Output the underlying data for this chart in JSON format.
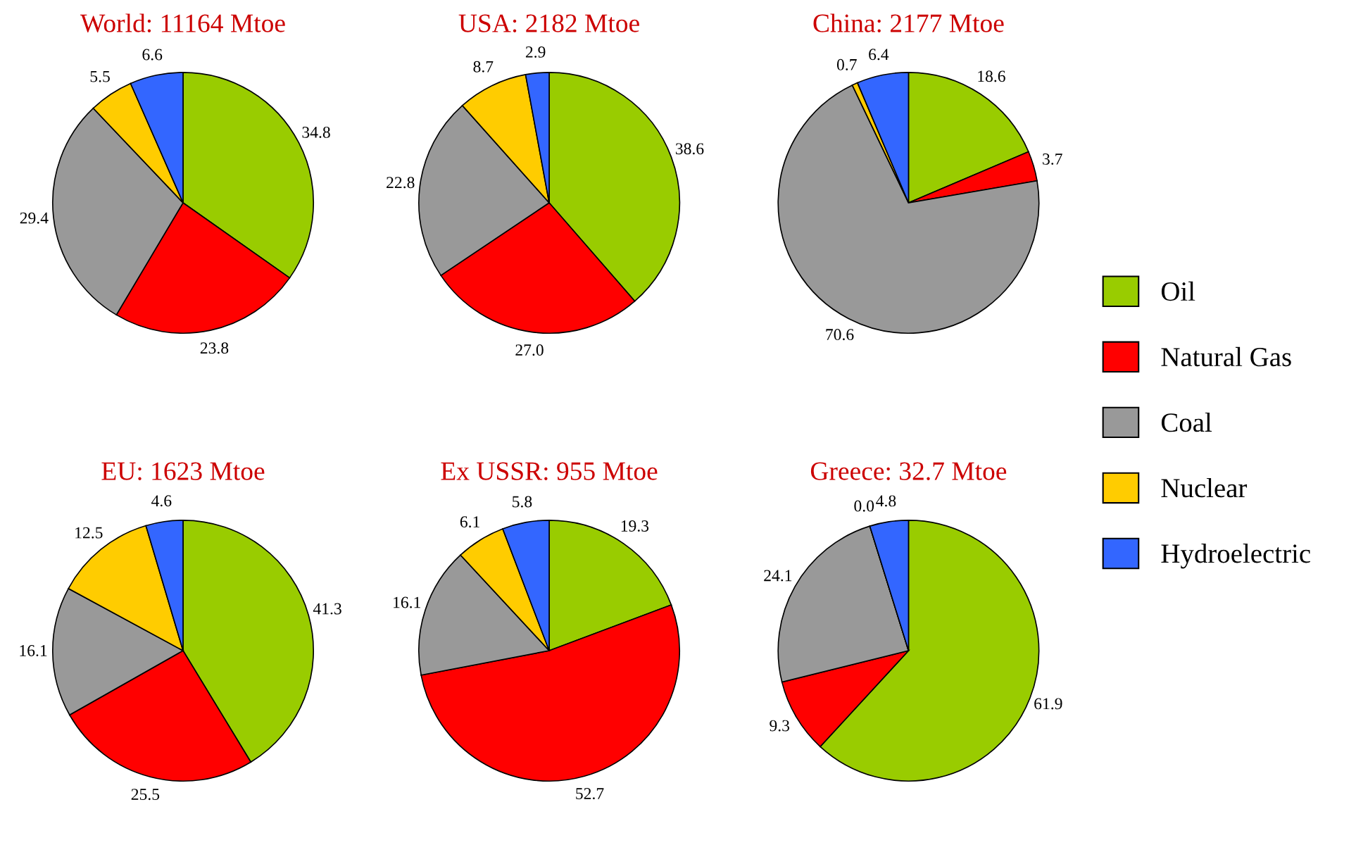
{
  "chart_data": [
    {
      "type": "pie",
      "title": "World: 11164 Mtoe",
      "categories": [
        "Oil",
        "Natural Gas",
        "Coal",
        "Nuclear",
        "Hydroelectric"
      ],
      "values": [
        34.8,
        23.8,
        29.4,
        5.5,
        6.6
      ],
      "value_labels": [
        "34.8",
        "23.8",
        "29.4",
        "5.5",
        "6.6"
      ],
      "colors": [
        "#99cc00",
        "#ff0000",
        "#999999",
        "#ffcc00",
        "#3366ff"
      ],
      "legend": "right"
    },
    {
      "type": "pie",
      "title": "USA: 2182 Mtoe",
      "values": [
        38.6,
        27.0,
        22.8,
        8.7,
        2.9
      ],
      "value_labels": [
        "38.6",
        "27.0",
        "22.8",
        "8.7",
        "2.9"
      ],
      "colors": [
        "#99cc00",
        "#ff0000",
        "#999999",
        "#ffcc00",
        "#3366ff"
      ]
    },
    {
      "type": "pie",
      "title": "China: 2177 Mtoe",
      "values": [
        18.6,
        3.7,
        70.6,
        0.7,
        6.4
      ],
      "value_labels": [
        "18.6",
        "3.7",
        "70.6",
        "0.7",
        "6.4"
      ],
      "colors": [
        "#99cc00",
        "#ff0000",
        "#999999",
        "#ffcc00",
        "#3366ff"
      ]
    },
    {
      "type": "pie",
      "title": "EU: 1623 Mtoe",
      "values": [
        41.3,
        25.5,
        16.1,
        12.5,
        4.6
      ],
      "value_labels": [
        "41.3",
        "25.5",
        "16.1",
        "12.5",
        "4.6"
      ],
      "colors": [
        "#99cc00",
        "#ff0000",
        "#999999",
        "#ffcc00",
        "#3366ff"
      ]
    },
    {
      "type": "pie",
      "title": "Ex USSR: 955 Mtoe",
      "values": [
        19.3,
        52.7,
        16.1,
        6.1,
        5.8
      ],
      "value_labels": [
        "19.3",
        "52.7",
        "16.1",
        "6.1",
        "5.8"
      ],
      "colors": [
        "#99cc00",
        "#ff0000",
        "#999999",
        "#ffcc00",
        "#3366ff"
      ]
    },
    {
      "type": "pie",
      "title": "Greece: 32.7 Mtoe",
      "values": [
        61.9,
        9.3,
        24.1,
        0.0,
        4.8
      ],
      "value_labels": [
        "61.9",
        "9.3",
        "24.1",
        "0.0",
        "4.8"
      ],
      "colors": [
        "#99cc00",
        "#ff0000",
        "#999999",
        "#ffcc00",
        "#3366ff"
      ]
    }
  ]
}
